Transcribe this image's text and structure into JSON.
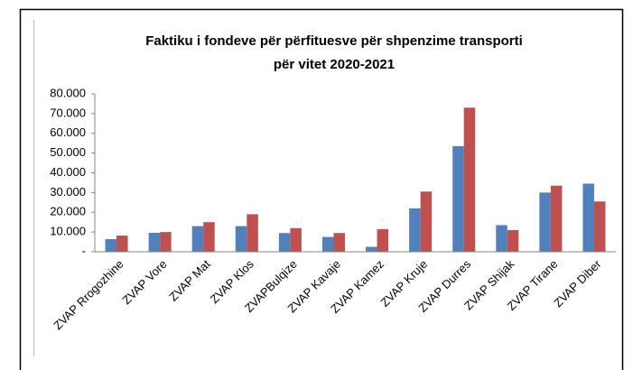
{
  "chart_data": {
    "type": "bar",
    "title": [
      "Faktiku i fondeve për përfituesve për  shpenzime transporti",
      "për vitet 2020-2021"
    ],
    "categories": [
      "ZVAP Rrogozhine",
      "ZVAP Vore",
      "ZVAP Mat",
      "ZVAP Klos",
      "ZVAPBulqize",
      "ZVAP Kavaje",
      "ZVAP Kamez",
      "ZVAP Kruje",
      "ZVAP Durres",
      "ZVAP Shijak",
      "ZVAP Tirane",
      "ZVAP Diber"
    ],
    "series": [
      {
        "color": "#4f81bd",
        "values": [
          6400,
          9600,
          13000,
          13000,
          9500,
          7500,
          2500,
          22000,
          53500,
          13500,
          30000,
          34500
        ]
      },
      {
        "color": "#c0504d",
        "values": [
          8200,
          10000,
          15000,
          19000,
          12000,
          9500,
          11500,
          30500,
          73000,
          11000,
          33500,
          25500
        ]
      }
    ],
    "ylim": [
      0,
      80000
    ],
    "yticks": [
      {
        "value": 0,
        "label": "-"
      },
      {
        "value": 10000,
        "label": "10.000"
      },
      {
        "value": 20000,
        "label": "20.000"
      },
      {
        "value": 30000,
        "label": "30.000"
      },
      {
        "value": 40000,
        "label": "40.000"
      },
      {
        "value": 50000,
        "label": "50.000"
      },
      {
        "value": 60000,
        "label": "60.000"
      },
      {
        "value": 70000,
        "label": "70.000"
      },
      {
        "value": 80000,
        "label": "80.000"
      }
    ],
    "grid": false
  }
}
